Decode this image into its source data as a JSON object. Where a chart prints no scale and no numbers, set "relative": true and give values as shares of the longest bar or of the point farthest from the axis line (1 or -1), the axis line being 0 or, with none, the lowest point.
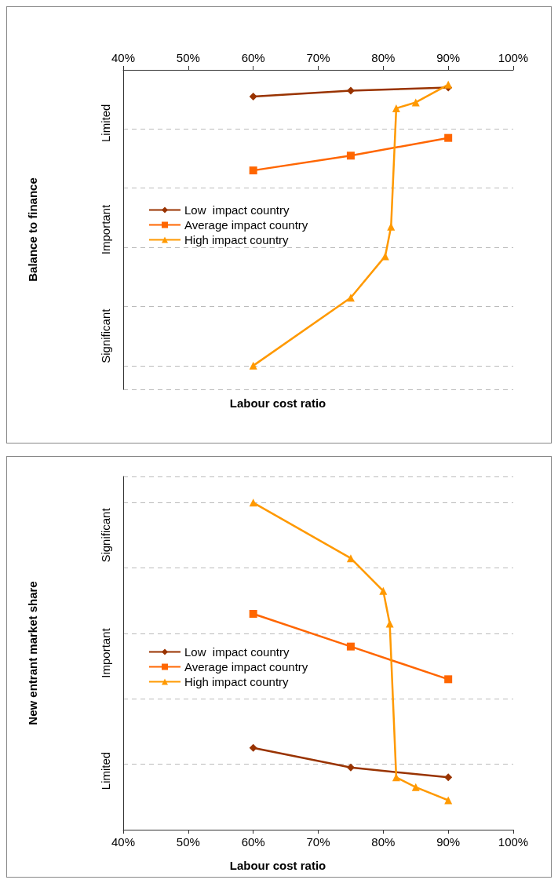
{
  "chart_data": [
    {
      "type": "line",
      "xlabel": "Labour cost ratio",
      "ylabel": "Balance to finance",
      "relative": true,
      "annotations": [
        "Limited",
        "Important",
        "Significant"
      ],
      "xlim": [
        40,
        100
      ],
      "xticks": [
        {
          "value": 40,
          "label": "40%"
        },
        {
          "value": 50,
          "label": "50%"
        },
        {
          "value": 60,
          "label": "60%"
        },
        {
          "value": 70,
          "label": "70%"
        },
        {
          "value": 80,
          "label": "80%"
        },
        {
          "value": 90,
          "label": "90%"
        },
        {
          "value": 100,
          "label": "100%"
        }
      ],
      "grid": "y",
      "legend": "left",
      "series": [
        {
          "name": "Low  impact country",
          "color": "#993300",
          "marker": "diamond",
          "x": [
            60,
            75,
            90
          ],
          "values": [
            -0.09,
            -0.07,
            -0.06
          ]
        },
        {
          "name": "Average impact country",
          "color": "#ff6600",
          "marker": "square",
          "x": [
            60,
            75,
            90
          ],
          "values": [
            -0.34,
            -0.29,
            -0.23
          ]
        },
        {
          "name": "High impact country",
          "color": "#ff9900",
          "marker": "triangle",
          "x": [
            60,
            75,
            80.3,
            81.2,
            82,
            85,
            90
          ],
          "values": [
            -1,
            -0.77,
            -0.63,
            -0.53,
            -0.13,
            -0.11,
            -0.05
          ]
        }
      ]
    },
    {
      "type": "line",
      "xlabel": "Labour cost ratio",
      "ylabel": "New entrant market share",
      "relative": true,
      "annotations": [
        "Significant",
        "Important",
        "Limited"
      ],
      "xlim": [
        40,
        100
      ],
      "xticks": [
        {
          "value": 40,
          "label": "40%"
        },
        {
          "value": 50,
          "label": "50%"
        },
        {
          "value": 60,
          "label": "60%"
        },
        {
          "value": 70,
          "label": "70%"
        },
        {
          "value": 80,
          "label": "80%"
        },
        {
          "value": 90,
          "label": "90%"
        },
        {
          "value": 100,
          "label": "100%"
        }
      ],
      "grid": "y",
      "legend": "left",
      "series": [
        {
          "name": "Low  impact country",
          "color": "#993300",
          "marker": "diamond",
          "x": [
            60,
            75,
            90
          ],
          "values": [
            0.25,
            0.19,
            0.16
          ]
        },
        {
          "name": "Average impact country",
          "color": "#ff6600",
          "marker": "square",
          "x": [
            60,
            75,
            90
          ],
          "values": [
            0.66,
            0.56,
            0.46
          ]
        },
        {
          "name": "High impact country",
          "color": "#ff9900",
          "marker": "triangle",
          "x": [
            60,
            75,
            80,
            81,
            82,
            85,
            90
          ],
          "values": [
            1,
            0.83,
            0.73,
            0.63,
            0.16,
            0.13,
            0.09
          ]
        }
      ]
    }
  ]
}
